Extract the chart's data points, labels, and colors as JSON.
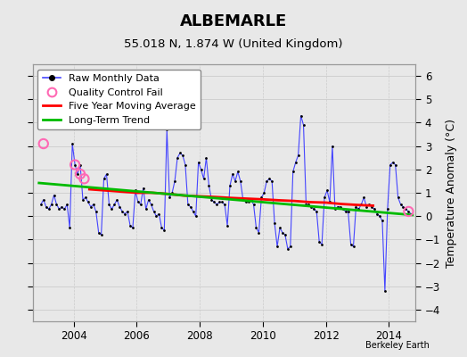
{
  "title": "ALBEMARLE",
  "subtitle": "55.018 N, 1.874 W (United Kingdom)",
  "ylabel": "Temperature Anomaly (°C)",
  "credit": "Berkeley Earth",
  "background_color": "#e8e8e8",
  "plot_background": "#e8e8e8",
  "ylim": [
    -4.5,
    6.5
  ],
  "yticks": [
    -4,
    -3,
    -2,
    -1,
    0,
    1,
    2,
    3,
    4,
    5,
    6
  ],
  "xlim": [
    2002.7,
    2014.85
  ],
  "xticks": [
    2004,
    2006,
    2008,
    2010,
    2012,
    2014
  ],
  "raw_x": [
    2002.958,
    2003.042,
    2003.125,
    2003.208,
    2003.292,
    2003.375,
    2003.458,
    2003.542,
    2003.625,
    2003.708,
    2003.792,
    2003.875,
    2003.958,
    2004.042,
    2004.125,
    2004.208,
    2004.292,
    2004.375,
    2004.458,
    2004.542,
    2004.625,
    2004.708,
    2004.792,
    2004.875,
    2004.958,
    2005.042,
    2005.125,
    2005.208,
    2005.292,
    2005.375,
    2005.458,
    2005.542,
    2005.625,
    2005.708,
    2005.792,
    2005.875,
    2005.958,
    2006.042,
    2006.125,
    2006.208,
    2006.292,
    2006.375,
    2006.458,
    2006.542,
    2006.625,
    2006.708,
    2006.792,
    2006.875,
    2006.958,
    2007.042,
    2007.125,
    2007.208,
    2007.292,
    2007.375,
    2007.458,
    2007.542,
    2007.625,
    2007.708,
    2007.792,
    2007.875,
    2007.958,
    2008.042,
    2008.125,
    2008.208,
    2008.292,
    2008.375,
    2008.458,
    2008.542,
    2008.625,
    2008.708,
    2008.792,
    2008.875,
    2008.958,
    2009.042,
    2009.125,
    2009.208,
    2009.292,
    2009.375,
    2009.458,
    2009.542,
    2009.625,
    2009.708,
    2009.792,
    2009.875,
    2009.958,
    2010.042,
    2010.125,
    2010.208,
    2010.292,
    2010.375,
    2010.458,
    2010.542,
    2010.625,
    2010.708,
    2010.792,
    2010.875,
    2010.958,
    2011.042,
    2011.125,
    2011.208,
    2011.292,
    2011.375,
    2011.458,
    2011.542,
    2011.625,
    2011.708,
    2011.792,
    2011.875,
    2011.958,
    2012.042,
    2012.125,
    2012.208,
    2012.292,
    2012.375,
    2012.458,
    2012.542,
    2012.625,
    2012.708,
    2012.792,
    2012.875,
    2012.958,
    2013.042,
    2013.125,
    2013.208,
    2013.292,
    2013.375,
    2013.458,
    2013.542,
    2013.625,
    2013.708,
    2013.792,
    2013.875,
    2013.958,
    2014.042,
    2014.125,
    2014.208,
    2014.292,
    2014.375,
    2014.458,
    2014.542,
    2014.625,
    2014.708
  ],
  "raw_y": [
    0.5,
    0.7,
    0.4,
    0.3,
    0.5,
    0.9,
    0.5,
    0.3,
    0.4,
    0.3,
    0.5,
    -0.5,
    3.1,
    2.2,
    1.8,
    2.2,
    0.7,
    0.8,
    0.6,
    0.4,
    0.5,
    0.2,
    -0.7,
    -0.8,
    1.6,
    1.8,
    0.5,
    0.3,
    0.5,
    0.7,
    0.4,
    0.2,
    0.1,
    0.2,
    -0.4,
    -0.5,
    1.1,
    0.6,
    0.5,
    1.2,
    0.3,
    0.7,
    0.5,
    0.2,
    0.0,
    0.1,
    -0.5,
    -0.6,
    3.7,
    0.8,
    1.0,
    1.5,
    2.5,
    2.7,
    2.6,
    2.2,
    0.5,
    0.4,
    0.2,
    0.0,
    2.3,
    2.0,
    1.6,
    2.5,
    1.3,
    0.7,
    0.6,
    0.5,
    0.6,
    0.6,
    0.5,
    -0.4,
    1.3,
    1.8,
    1.5,
    1.9,
    1.5,
    0.7,
    0.6,
    0.6,
    0.7,
    0.5,
    -0.5,
    -0.7,
    0.8,
    1.0,
    1.5,
    1.6,
    1.5,
    -0.3,
    -1.3,
    -0.5,
    -0.7,
    -0.8,
    -1.4,
    -1.3,
    1.9,
    2.3,
    2.6,
    4.3,
    3.9,
    0.5,
    0.5,
    0.4,
    0.3,
    0.2,
    -1.1,
    -1.2,
    0.8,
    1.1,
    0.6,
    3.0,
    0.3,
    0.4,
    0.4,
    0.3,
    0.2,
    0.2,
    -1.2,
    -1.3,
    0.4,
    0.3,
    0.5,
    0.8,
    0.4,
    0.5,
    0.4,
    0.3,
    0.1,
    0.0,
    -0.2,
    -3.2,
    0.3,
    2.2,
    2.3,
    2.2,
    0.8,
    0.5,
    0.4,
    0.3,
    0.2,
    0.1
  ],
  "qc_x": [
    2003.042,
    2004.042,
    2004.208,
    2004.333,
    2014.625
  ],
  "qc_y": [
    3.1,
    2.2,
    1.8,
    1.6,
    0.2
  ],
  "ma_x": [
    2004.5,
    2005.0,
    2005.5,
    2006.0,
    2006.5,
    2007.0,
    2007.5,
    2008.0,
    2008.5,
    2009.0,
    2009.5,
    2010.0,
    2010.5,
    2011.0,
    2011.5,
    2012.0,
    2012.5,
    2013.0,
    2013.5
  ],
  "ma_y": [
    1.15,
    1.1,
    1.05,
    1.0,
    1.0,
    0.95,
    0.88,
    0.85,
    0.82,
    0.78,
    0.75,
    0.72,
    0.68,
    0.65,
    0.6,
    0.58,
    0.52,
    0.48,
    0.45
  ],
  "trend_x": [
    2002.9,
    2014.75
  ],
  "trend_y": [
    1.42,
    0.05
  ],
  "line_color": "#4444ff",
  "ma_color": "#ff0000",
  "trend_color": "#00bb00",
  "qc_color": "#ff69b4",
  "dot_color": "#000000",
  "grid_color": "#cccccc",
  "title_fontsize": 13,
  "subtitle_fontsize": 9.5,
  "tick_fontsize": 8.5,
  "label_fontsize": 9,
  "legend_fontsize": 8
}
